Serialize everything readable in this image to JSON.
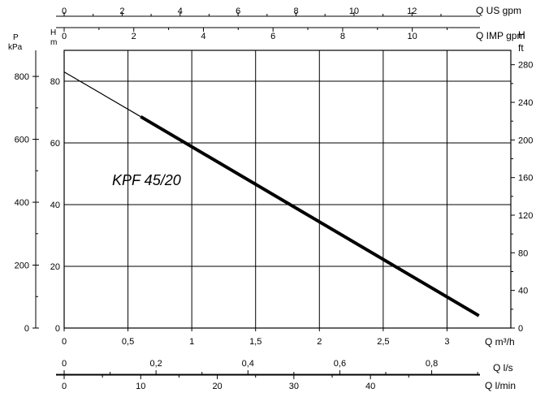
{
  "chart_data": {
    "type": "line",
    "xlabel": "Q m³/h",
    "ylabel": "H m",
    "x_range": [
      0,
      3.5
    ],
    "y_range": [
      0,
      90
    ],
    "grid": true,
    "x_ticks": [
      "0",
      "0,5",
      "1",
      "1,5",
      "2",
      "2,5",
      "3"
    ],
    "y_ticks": [
      "0",
      "20",
      "40",
      "60",
      "80"
    ],
    "curve_label": "KPF 45/20",
    "series": [
      {
        "name": "KPF 45/20",
        "extension": {
          "x": [
            0,
            0.6
          ],
          "y": [
            83,
            68.5
          ]
        },
        "curve": {
          "x": [
            0.6,
            3.25
          ],
          "y": [
            68.5,
            4
          ]
        }
      }
    ],
    "secondary_axes": {
      "left_pressure": {
        "label_top": "P",
        "label_bottom": "kPa",
        "ticks": [
          "0",
          "200",
          "400",
          "600",
          "800"
        ],
        "values": [
          0,
          200,
          400,
          600,
          800
        ]
      },
      "left_head": {
        "label_top": "H",
        "label_bottom": "m"
      },
      "right_feet": {
        "label_top": "H",
        "label_bottom": "ft",
        "ticks": [
          "0",
          "40",
          "80",
          "120",
          "160",
          "200",
          "240",
          "280"
        ],
        "values": [
          0,
          40,
          80,
          120,
          160,
          200,
          240,
          280
        ]
      },
      "top_us_gpm": {
        "label": "Q US gpm",
        "ticks": [
          "0",
          "2",
          "4",
          "6",
          "8",
          "10",
          "12"
        ],
        "values": [
          0,
          2,
          4,
          6,
          8,
          10,
          12
        ]
      },
      "top_imp_gpm": {
        "label": "Q IMP gpm",
        "ticks": [
          "0",
          "2",
          "4",
          "6",
          "8",
          "10"
        ],
        "values": [
          0,
          2,
          4,
          6,
          8,
          10
        ]
      },
      "bottom_ls": {
        "label": "Q l/s",
        "ticks": [
          "0",
          "0,2",
          "0,4",
          "0,6",
          "0,8"
        ],
        "values": [
          0,
          0.2,
          0.4,
          0.6,
          0.8
        ]
      },
      "bottom_lmin": {
        "label": "Q l/min",
        "ticks": [
          "0",
          "10",
          "20",
          "30",
          "40"
        ],
        "values": [
          0,
          10,
          20,
          30,
          40
        ]
      }
    }
  }
}
